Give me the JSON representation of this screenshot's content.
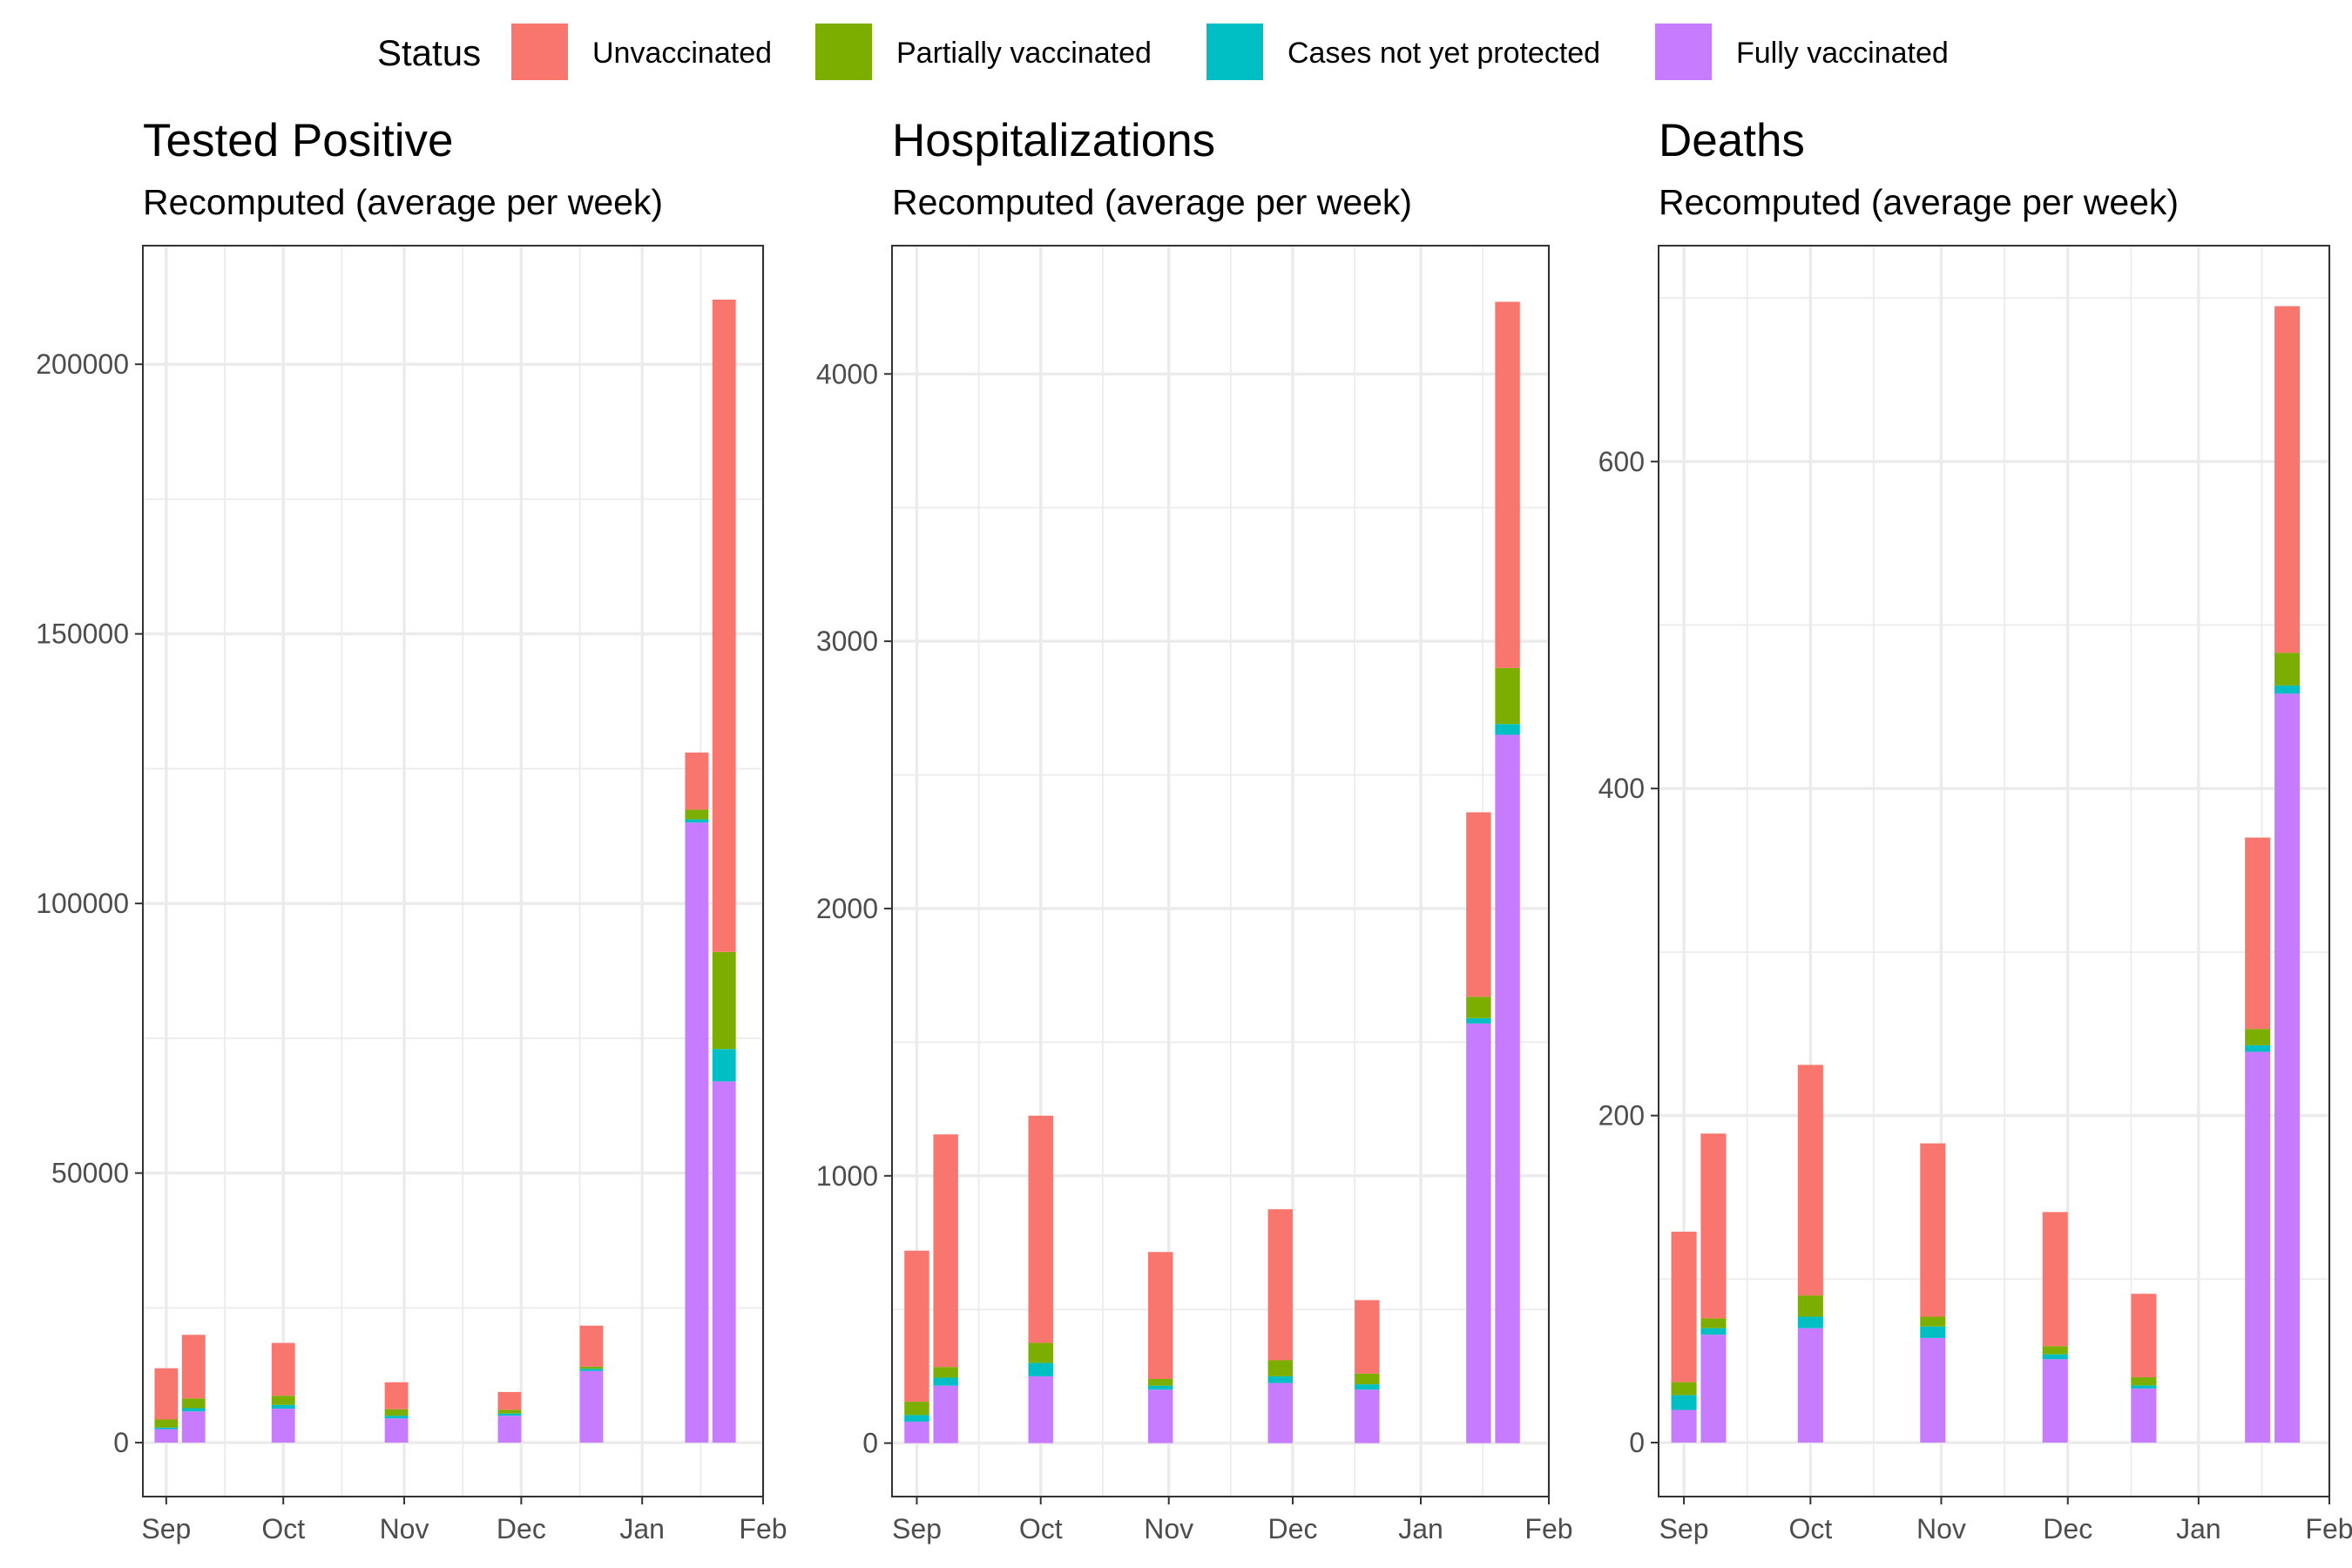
{
  "legend": {
    "title": "Status",
    "entries": [
      {
        "label": "Unvaccinated",
        "color": "#F8766D"
      },
      {
        "label": "Partially vaccinated",
        "color": "#7CAE00"
      },
      {
        "label": "Cases not yet protected",
        "color": "#00BFC4"
      },
      {
        "label": "Fully vaccinated",
        "color": "#C77CFF"
      }
    ]
  },
  "chart_data": [
    {
      "type": "bar",
      "stacked": true,
      "title": "Tested Positive",
      "subtitle": "Recomputed (average per week)",
      "xlabel": "",
      "ylabel": "",
      "x_ticks": [
        "Sep",
        "Oct",
        "Nov",
        "Dec",
        "Jan",
        "Feb"
      ],
      "y_ticks": [
        0,
        50000,
        100000,
        150000,
        200000
      ],
      "ylim": [
        -10000,
        222000
      ],
      "categories": [
        "2021-09-01",
        "2021-09-08",
        "2021-10-01",
        "2021-10-30",
        "2021-11-28",
        "2021-12-19",
        "2022-01-15",
        "2022-01-22"
      ],
      "series": [
        {
          "name": "Fully vaccinated",
          "values": [
            2500,
            5800,
            6300,
            4500,
            5000,
            13300,
            115000,
            67000
          ]
        },
        {
          "name": "Cases not yet protected",
          "values": [
            300,
            600,
            700,
            500,
            400,
            400,
            600,
            6000
          ]
        },
        {
          "name": "Partially vaccinated",
          "values": [
            1500,
            1800,
            1700,
            1200,
            700,
            400,
            1800,
            18000
          ]
        },
        {
          "name": "Unvaccinated",
          "values": [
            9500,
            11800,
            9800,
            5000,
            3300,
            7600,
            10600,
            121000
          ]
        }
      ]
    },
    {
      "type": "bar",
      "stacked": true,
      "title": "Hospitalizations",
      "subtitle": "Recomputed (average per week)",
      "xlabel": "",
      "ylabel": "",
      "x_ticks": [
        "Sep",
        "Oct",
        "Nov",
        "Dec",
        "Jan",
        "Feb"
      ],
      "y_ticks": [
        0,
        1000,
        2000,
        3000,
        4000
      ],
      "ylim": [
        -200,
        4480
      ],
      "categories": [
        "2021-09-01",
        "2021-09-08",
        "2021-10-01",
        "2021-10-30",
        "2021-11-28",
        "2021-12-19",
        "2022-01-15",
        "2022-01-22"
      ],
      "series": [
        {
          "name": "Fully vaccinated",
          "values": [
            80,
            215,
            250,
            200,
            225,
            200,
            1570,
            2650
          ]
        },
        {
          "name": "Cases not yet protected",
          "values": [
            25,
            30,
            50,
            15,
            25,
            20,
            20,
            40
          ]
        },
        {
          "name": "Partially vaccinated",
          "values": [
            50,
            40,
            75,
            25,
            60,
            40,
            80,
            210
          ]
        },
        {
          "name": "Unvaccinated",
          "values": [
            565,
            870,
            850,
            475,
            565,
            275,
            690,
            1370
          ]
        }
      ]
    },
    {
      "type": "bar",
      "stacked": true,
      "title": "Deaths",
      "subtitle": "Recomputed (average per week)",
      "xlabel": "",
      "ylabel": "",
      "x_ticks": [
        "Sep",
        "Oct",
        "Nov",
        "Dec",
        "Jan",
        "Feb"
      ],
      "y_ticks": [
        0,
        200,
        400,
        600
      ],
      "ylim": [
        -33,
        732
      ],
      "categories": [
        "2021-09-01",
        "2021-09-08",
        "2021-10-01",
        "2021-10-30",
        "2021-11-28",
        "2021-12-19",
        "2022-01-15",
        "2022-01-22"
      ],
      "series": [
        {
          "name": "Fully vaccinated",
          "values": [
            20,
            66,
            70,
            64,
            51,
            33,
            239,
            458
          ]
        },
        {
          "name": "Cases not yet protected",
          "values": [
            9,
            4,
            7,
            7,
            3,
            2,
            4,
            5
          ]
        },
        {
          "name": "Partially vaccinated",
          "values": [
            8,
            6,
            13,
            6,
            5,
            5,
            10,
            20
          ]
        },
        {
          "name": "Unvaccinated",
          "values": [
            92,
            113,
            141,
            106,
            82,
            51,
            117,
            212
          ]
        }
      ]
    }
  ]
}
